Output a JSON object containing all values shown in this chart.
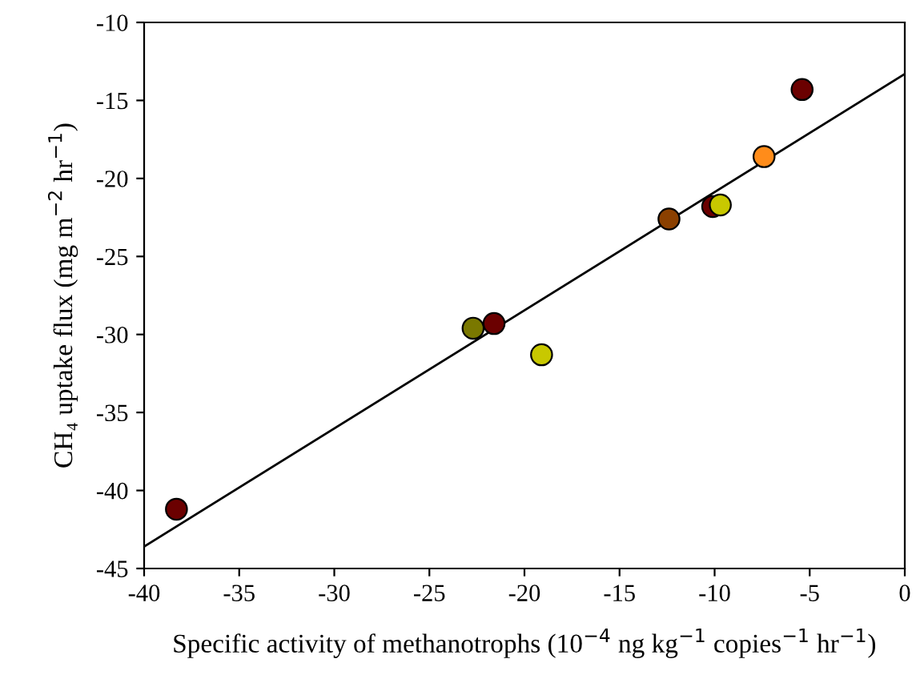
{
  "chart_data": {
    "type": "scatter",
    "xlabel": "Specific activity of methanotrophs (10$^{−4}$ ng kg$^{−1}$ copies$^{−1}$ hr$^{−1}$)",
    "ylabel": "CH₄ uptake flux (mg m$^{−2}$ hr$^{−1}$)",
    "series": [
      {
        "x": [
          -38.3,
          -22.7,
          -21.6,
          -19.1,
          -12.4,
          -10.1,
          -9.7,
          -7.4,
          -5.4
        ],
        "values": [
          -41.2,
          -29.6,
          -29.3,
          -31.3,
          -22.6,
          -21.8,
          -21.7,
          -18.6,
          -14.3
        ],
        "colors": [
          "#6b0000",
          "#7a7800",
          "#6b0000",
          "#c8c800",
          "#8b4000",
          "#6b0000",
          "#c8c800",
          "#ff8c1a",
          "#6b0000"
        ],
        "marker": "circle"
      },
      {
        "type": "line",
        "x": [
          -40,
          0
        ],
        "values": [
          -43.6,
          -13.3
        ],
        "color": "#000000",
        "marker": "none"
      }
    ],
    "xlim": [
      -40,
      0
    ],
    "ylim": [
      -45,
      -10
    ],
    "xticks": [
      -40,
      -35,
      -30,
      -25,
      -20,
      -15,
      -10,
      -5,
      0
    ],
    "yticks": [
      -45,
      -40,
      -35,
      -30,
      -25,
      -20,
      -15,
      -10
    ],
    "grid": false,
    "legend": false
  }
}
